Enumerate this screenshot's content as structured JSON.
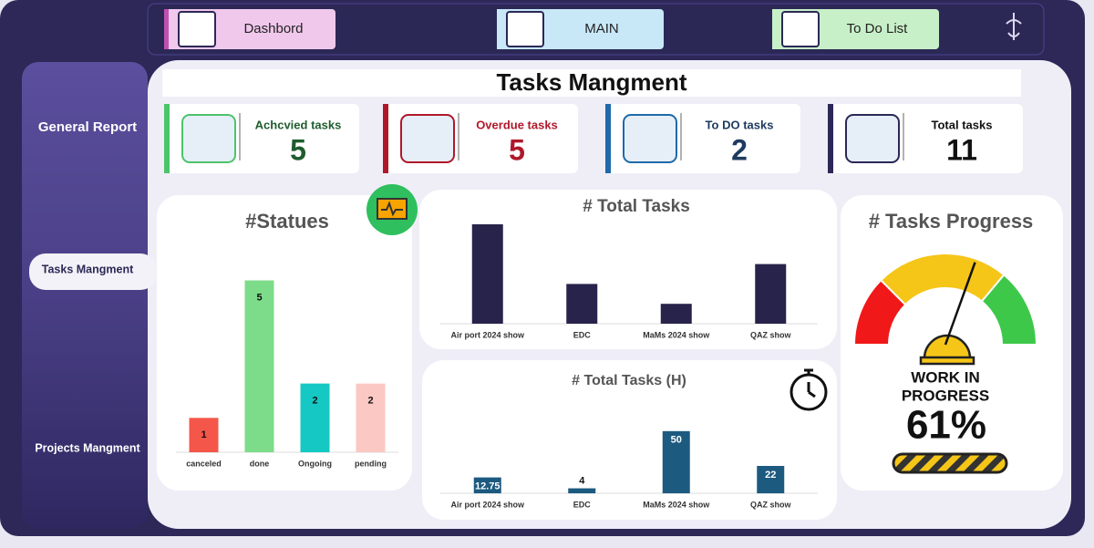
{
  "nav": [
    "Dashbord",
    "MAIN",
    "To Do List"
  ],
  "sidebar": [
    "General Report",
    "Tasks Mangment",
    "Projects Mangment"
  ],
  "header": {
    "title": "Tasks Mangment"
  },
  "kpis": [
    {
      "label": "Achcvied tasks",
      "value": 5,
      "color": "#1f5c2e",
      "accent": "#4cc46a"
    },
    {
      "label": "Overdue tasks",
      "value": 5,
      "color": "#b0182a",
      "accent": "#b0182a"
    },
    {
      "label": "To DO tasks",
      "value": 2,
      "color": "#1e3a5f",
      "accent": "#1f6aa8"
    },
    {
      "label": "Total tasks",
      "value": 11,
      "color": "#111111",
      "accent": "#2b2856"
    }
  ],
  "chart_data": [
    {
      "type": "bar",
      "title": "#Statues",
      "categories": [
        "canceled",
        "done",
        "Ongoing",
        "pending"
      ],
      "values": [
        1,
        5,
        2,
        2
      ],
      "colors": [
        "#f4574a",
        "#7ddc8a",
        "#16c8c4",
        "#fbc8c4"
      ],
      "ylim": [
        0,
        5.2
      ],
      "data_labels": true
    },
    {
      "type": "bar",
      "title": "# Total Tasks",
      "categories": [
        "Air port 2024 show",
        "EDC",
        "MaMs 2024 show",
        "QAZ show"
      ],
      "values": [
        5,
        2,
        1,
        3
      ],
      "color": "#28234a",
      "ylim": [
        0,
        5
      ],
      "data_labels": false
    },
    {
      "type": "bar",
      "title": "# Total Tasks (H)",
      "categories": [
        "Air port 2024 show",
        "EDC",
        "MaMs 2024 show",
        "QAZ show"
      ],
      "values": [
        12.75,
        4,
        50,
        22
      ],
      "color": "#1d5a80",
      "ylim": [
        0,
        55
      ],
      "data_labels": true
    },
    {
      "type": "gauge",
      "title": "# Tasks Progress",
      "caption": [
        "WORK IN",
        "PROGRESS"
      ],
      "value": 61,
      "value_label": "61%",
      "range": [
        0,
        100
      ]
    }
  ]
}
